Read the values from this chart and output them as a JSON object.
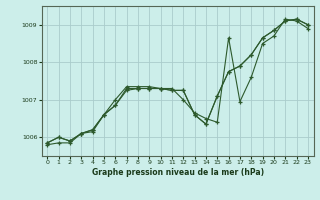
{
  "xlabel": "Graphe pression niveau de la mer (hPa)",
  "background_color": "#cceeea",
  "grid_color": "#aacccc",
  "line_color": "#2d5a2d",
  "ylim": [
    1005.5,
    1009.5
  ],
  "xlim": [
    -0.5,
    23.5
  ],
  "yticks": [
    1006,
    1007,
    1008,
    1009
  ],
  "xticks": [
    0,
    1,
    2,
    3,
    4,
    5,
    6,
    7,
    8,
    9,
    10,
    11,
    12,
    13,
    14,
    15,
    16,
    17,
    18,
    19,
    20,
    21,
    22,
    23
  ],
  "series1_x": [
    0,
    1,
    2,
    3,
    4,
    5,
    6,
    7,
    8,
    9,
    10,
    11,
    12,
    13,
    14,
    15,
    16,
    17,
    18,
    19,
    20,
    21,
    22,
    23
  ],
  "series1_y": [
    1005.85,
    1006.0,
    1005.9,
    1006.1,
    1006.2,
    1006.6,
    1006.85,
    1007.3,
    1007.3,
    1007.3,
    1007.3,
    1007.25,
    1007.25,
    1006.6,
    1006.35,
    1007.1,
    1007.75,
    1007.9,
    1008.2,
    1008.65,
    1008.85,
    1009.1,
    1009.15,
    1009.0
  ],
  "series2_x": [
    0,
    1,
    2,
    3,
    4,
    5,
    6,
    7,
    8,
    9,
    10,
    11,
    12,
    13,
    14,
    15,
    16,
    17,
    18,
    19,
    20,
    21,
    22,
    23
  ],
  "series2_y": [
    1005.85,
    1006.0,
    1005.9,
    1006.1,
    1006.2,
    1006.6,
    1006.85,
    1007.25,
    1007.3,
    1007.3,
    1007.3,
    1007.25,
    1007.25,
    1006.6,
    1006.35,
    1007.1,
    1007.75,
    1007.9,
    1008.2,
    1008.65,
    1008.85,
    1009.1,
    1009.15,
    1009.0
  ],
  "series3_x": [
    0,
    1,
    2,
    3,
    4,
    5,
    6,
    7,
    8,
    9,
    10,
    11,
    12,
    13,
    14,
    15,
    16,
    17,
    18,
    19,
    20,
    21,
    22,
    23
  ],
  "series3_y": [
    1005.8,
    1005.85,
    1005.85,
    1006.1,
    1006.15,
    1006.6,
    1007.0,
    1007.35,
    1007.35,
    1007.35,
    1007.3,
    1007.3,
    1007.0,
    1006.65,
    1006.5,
    1006.4,
    1008.65,
    1006.95,
    1007.6,
    1008.5,
    1008.7,
    1009.15,
    1009.1,
    1008.9
  ]
}
